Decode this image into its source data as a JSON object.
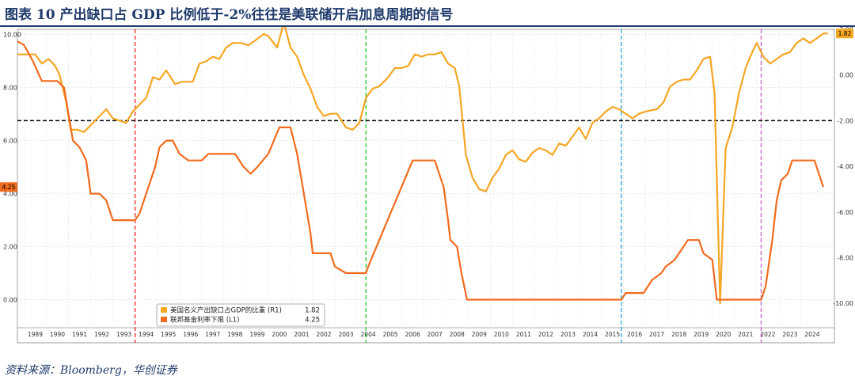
{
  "title": "图表 10  产出缺口占 GDP 比例低于-2%往往是美联储开启加息周期的信号",
  "source": "资料来源：Bloomberg，华创证券",
  "chart_data": {
    "type": "line",
    "x_ticks": [
      "1989",
      "1990",
      "1991",
      "1992",
      "1993",
      "1994",
      "1995",
      "1996",
      "1997",
      "1998",
      "1999",
      "2000",
      "2001",
      "2002",
      "2003",
      "2004",
      "2005",
      "2006",
      "2007",
      "2008",
      "2009",
      "2010",
      "2011",
      "2012",
      "2013",
      "2014",
      "2015",
      "2016",
      "2017",
      "2018",
      "2019",
      "2020",
      "2021",
      "2022",
      "2023",
      "2024"
    ],
    "xlim": [
      1988.7,
      2025.5
    ],
    "y_left": {
      "lim": [
        -1,
        10.2
      ],
      "ticks": [
        "0.00",
        "2.00",
        "4.00",
        "6.00",
        "8.00",
        "10.00"
      ]
    },
    "y_right": {
      "lim": [
        -11.0,
        2.0
      ],
      "ticks": [
        "-10.00",
        "-8.00",
        "-6.00",
        "-4.00",
        "-2.00",
        "0.00",
        "2.00"
      ]
    },
    "threshold": {
      "axis": "right",
      "value": -2.0,
      "color": "#000000"
    },
    "vlines": [
      {
        "x": 1994.0,
        "color": "#e8312b"
      },
      {
        "x": 2004.4,
        "color": "#33cc33"
      },
      {
        "x": 2015.9,
        "color": "#33aadd"
      },
      {
        "x": 2022.2,
        "color": "#cc66cc"
      }
    ],
    "series": [
      {
        "name": "美国名义产出缺口占GDP的比重 (R1)",
        "axis": "right",
        "color": "#f5a623",
        "last": "1.82",
        "points": [
          [
            1988.7,
            0.9
          ],
          [
            1989.0,
            0.9
          ],
          [
            1989.5,
            0.9
          ],
          [
            1989.8,
            0.5
          ],
          [
            1990.1,
            0.7
          ],
          [
            1990.4,
            0.4
          ],
          [
            1990.6,
            0.0
          ],
          [
            1990.9,
            -1.2
          ],
          [
            1991.1,
            -2.4
          ],
          [
            1991.4,
            -2.4
          ],
          [
            1991.7,
            -2.5
          ],
          [
            1992.0,
            -2.2
          ],
          [
            1992.3,
            -1.9
          ],
          [
            1992.7,
            -1.5
          ],
          [
            1993.0,
            -1.9
          ],
          [
            1993.3,
            -2.0
          ],
          [
            1993.6,
            -2.1
          ],
          [
            1993.9,
            -1.6
          ],
          [
            1994.2,
            -1.3
          ],
          [
            1994.5,
            -1.0
          ],
          [
            1994.8,
            -0.1
          ],
          [
            1995.1,
            -0.2
          ],
          [
            1995.4,
            0.2
          ],
          [
            1995.8,
            -0.4
          ],
          [
            1996.1,
            -0.3
          ],
          [
            1996.6,
            -0.3
          ],
          [
            1996.9,
            0.5
          ],
          [
            1997.2,
            0.6
          ],
          [
            1997.5,
            0.8
          ],
          [
            1997.8,
            0.7
          ],
          [
            1998.1,
            1.2
          ],
          [
            1998.4,
            1.4
          ],
          [
            1998.8,
            1.4
          ],
          [
            1999.1,
            1.3
          ],
          [
            1999.4,
            1.5
          ],
          [
            1999.8,
            1.8
          ],
          [
            2000.0,
            1.7
          ],
          [
            2000.4,
            1.2
          ],
          [
            2000.7,
            2.3
          ],
          [
            2001.0,
            1.2
          ],
          [
            2001.3,
            0.8
          ],
          [
            2001.6,
            0.0
          ],
          [
            2001.9,
            -0.6
          ],
          [
            2002.2,
            -1.4
          ],
          [
            2002.5,
            -1.8
          ],
          [
            2002.8,
            -1.7
          ],
          [
            2003.1,
            -1.7
          ],
          [
            2003.5,
            -2.3
          ],
          [
            2003.8,
            -2.4
          ],
          [
            2004.1,
            -2.1
          ],
          [
            2004.4,
            -1.0
          ],
          [
            2004.7,
            -0.6
          ],
          [
            2005.0,
            -0.5
          ],
          [
            2005.4,
            -0.1
          ],
          [
            2005.7,
            0.3
          ],
          [
            2006.0,
            0.3
          ],
          [
            2006.3,
            0.4
          ],
          [
            2006.6,
            0.9
          ],
          [
            2006.9,
            0.8
          ],
          [
            2007.2,
            0.9
          ],
          [
            2007.5,
            0.9
          ],
          [
            2007.8,
            1.0
          ],
          [
            2008.1,
            0.5
          ],
          [
            2008.4,
            0.3
          ],
          [
            2008.6,
            -0.5
          ],
          [
            2008.9,
            -3.5
          ],
          [
            2009.2,
            -4.5
          ],
          [
            2009.5,
            -5.0
          ],
          [
            2009.8,
            -5.1
          ],
          [
            2010.1,
            -4.5
          ],
          [
            2010.4,
            -4.1
          ],
          [
            2010.7,
            -3.5
          ],
          [
            2011.0,
            -3.3
          ],
          [
            2011.3,
            -3.7
          ],
          [
            2011.6,
            -3.8
          ],
          [
            2011.9,
            -3.4
          ],
          [
            2012.2,
            -3.2
          ],
          [
            2012.5,
            -3.3
          ],
          [
            2012.8,
            -3.5
          ],
          [
            2013.1,
            -3.0
          ],
          [
            2013.4,
            -3.1
          ],
          [
            2013.7,
            -2.7
          ],
          [
            2014.0,
            -2.3
          ],
          [
            2014.3,
            -2.8
          ],
          [
            2014.6,
            -2.1
          ],
          [
            2014.9,
            -1.9
          ],
          [
            2015.2,
            -1.6
          ],
          [
            2015.5,
            -1.4
          ],
          [
            2015.8,
            -1.5
          ],
          [
            2016.1,
            -1.7
          ],
          [
            2016.4,
            -1.9
          ],
          [
            2016.7,
            -1.7
          ],
          [
            2017.0,
            -1.6
          ],
          [
            2017.5,
            -1.5
          ],
          [
            2017.8,
            -1.2
          ],
          [
            2018.1,
            -0.5
          ],
          [
            2018.4,
            -0.3
          ],
          [
            2018.7,
            -0.2
          ],
          [
            2019.0,
            -0.2
          ],
          [
            2019.3,
            0.2
          ],
          [
            2019.6,
            0.7
          ],
          [
            2019.9,
            0.8
          ],
          [
            2020.1,
            -0.8
          ],
          [
            2020.35,
            -10.0
          ],
          [
            2020.6,
            -3.2
          ],
          [
            2020.9,
            -2.3
          ],
          [
            2021.2,
            -0.8
          ],
          [
            2021.5,
            0.3
          ],
          [
            2021.8,
            1.0
          ],
          [
            2022.0,
            1.4
          ],
          [
            2022.3,
            0.8
          ],
          [
            2022.6,
            0.5
          ],
          [
            2022.9,
            0.7
          ],
          [
            2023.2,
            0.9
          ],
          [
            2023.5,
            1.0
          ],
          [
            2023.8,
            1.4
          ],
          [
            2024.1,
            1.6
          ],
          [
            2024.4,
            1.4
          ],
          [
            2024.7,
            1.6
          ],
          [
            2025.0,
            1.82
          ],
          [
            2025.2,
            1.82
          ]
        ]
      },
      {
        "name": "联邦基金利率下限 (L1)",
        "axis": "left",
        "color": "#f26b1d",
        "last": "4.25",
        "points": [
          [
            1988.7,
            9.75
          ],
          [
            1989.0,
            9.6
          ],
          [
            1989.4,
            9.0
          ],
          [
            1989.8,
            8.25
          ],
          [
            1990.1,
            8.25
          ],
          [
            1990.5,
            8.25
          ],
          [
            1990.8,
            8.0
          ],
          [
            1991.0,
            7.0
          ],
          [
            1991.2,
            6.0
          ],
          [
            1991.5,
            5.75
          ],
          [
            1991.8,
            5.25
          ],
          [
            1992.0,
            4.0
          ],
          [
            1992.4,
            4.0
          ],
          [
            1992.7,
            3.75
          ],
          [
            1993.0,
            3.0
          ],
          [
            1993.5,
            3.0
          ],
          [
            1994.0,
            3.0
          ],
          [
            1994.2,
            3.25
          ],
          [
            1994.6,
            4.25
          ],
          [
            1994.9,
            5.0
          ],
          [
            1995.1,
            5.75
          ],
          [
            1995.4,
            6.0
          ],
          [
            1995.7,
            6.0
          ],
          [
            1996.0,
            5.5
          ],
          [
            1996.4,
            5.25
          ],
          [
            1997.0,
            5.25
          ],
          [
            1997.3,
            5.5
          ],
          [
            1998.0,
            5.5
          ],
          [
            1998.5,
            5.5
          ],
          [
            1998.9,
            5.0
          ],
          [
            1999.2,
            4.75
          ],
          [
            1999.5,
            5.0
          ],
          [
            2000.0,
            5.5
          ],
          [
            2000.5,
            6.5
          ],
          [
            2001.0,
            6.5
          ],
          [
            2001.3,
            5.5
          ],
          [
            2001.6,
            4.0
          ],
          [
            2001.9,
            2.5
          ],
          [
            2002.0,
            1.75
          ],
          [
            2002.8,
            1.75
          ],
          [
            2003.0,
            1.25
          ],
          [
            2003.5,
            1.0
          ],
          [
            2004.4,
            1.0
          ],
          [
            2004.5,
            1.25
          ],
          [
            2005.0,
            2.25
          ],
          [
            2005.5,
            3.25
          ],
          [
            2006.0,
            4.25
          ],
          [
            2006.5,
            5.25
          ],
          [
            2007.5,
            5.25
          ],
          [
            2007.9,
            4.25
          ],
          [
            2008.1,
            3.0
          ],
          [
            2008.2,
            2.25
          ],
          [
            2008.5,
            2.0
          ],
          [
            2008.7,
            1.0
          ],
          [
            2008.95,
            0.0
          ],
          [
            2015.9,
            0.0
          ],
          [
            2016.1,
            0.25
          ],
          [
            2016.9,
            0.25
          ],
          [
            2017.3,
            0.75
          ],
          [
            2017.7,
            1.0
          ],
          [
            2017.9,
            1.25
          ],
          [
            2018.3,
            1.5
          ],
          [
            2018.7,
            2.0
          ],
          [
            2018.9,
            2.25
          ],
          [
            2019.4,
            2.25
          ],
          [
            2019.6,
            1.75
          ],
          [
            2020.0,
            1.5
          ],
          [
            2020.2,
            0.0
          ],
          [
            2022.2,
            0.0
          ],
          [
            2022.4,
            0.5
          ],
          [
            2022.7,
            2.25
          ],
          [
            2022.9,
            3.75
          ],
          [
            2023.1,
            4.5
          ],
          [
            2023.4,
            4.75
          ],
          [
            2023.6,
            5.25
          ],
          [
            2024.6,
            5.25
          ],
          [
            2024.8,
            4.75
          ],
          [
            2025.0,
            4.25
          ]
        ]
      }
    ],
    "legend": {
      "position": "bottom-center",
      "entries": [
        {
          "label": "美国名义产出缺口占GDP的比重 (R1)",
          "value": "1.82",
          "color": "#f5a623"
        },
        {
          "label": "联邦基金利率下限 (L1)",
          "value": "4.25",
          "color": "#f26b1d"
        }
      ]
    }
  }
}
